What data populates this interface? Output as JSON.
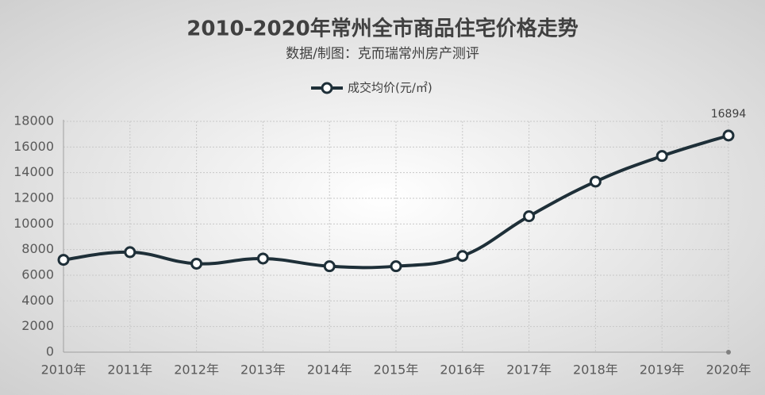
{
  "chart_data": {
    "type": "line",
    "title": "2010-2020年常州全市商品住宅价格走势",
    "subtitle": "数据/制图：克而瑞常州房产测评",
    "categories": [
      "2010年",
      "2011年",
      "2012年",
      "2013年",
      "2014年",
      "2015年",
      "2016年",
      "2017年",
      "2018年",
      "2019年",
      "2020年"
    ],
    "series": [
      {
        "name": "成交均价(元/㎡)",
        "color": "#1e2f38",
        "values": [
          7200,
          7800,
          6900,
          7300,
          6700,
          6700,
          7500,
          10600,
          13300,
          15300,
          16894
        ]
      }
    ],
    "ylim": [
      0,
      18000
    ],
    "yticks": [
      0,
      2000,
      4000,
      6000,
      8000,
      10000,
      12000,
      14000,
      16000,
      18000
    ],
    "grid": true
  }
}
